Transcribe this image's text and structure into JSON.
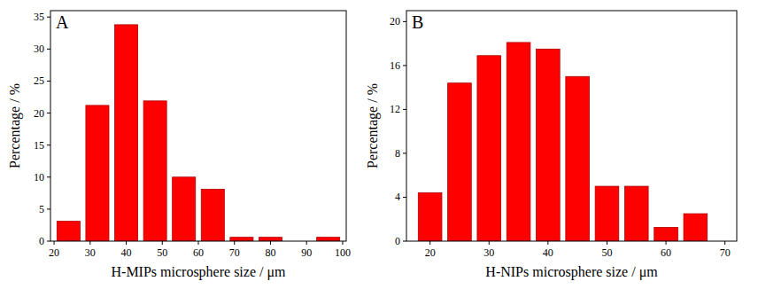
{
  "chart_data": [
    {
      "type": "histogram",
      "annotations": [
        "A"
      ],
      "x_label": "H-MIPs microsphere size / μm",
      "y_label": "Percentage / %",
      "bins": [
        20,
        28,
        36,
        44,
        52,
        60,
        68,
        76,
        84,
        92,
        100
      ],
      "values": [
        3.1,
        21.2,
        33.8,
        21.9,
        10.0,
        8.1,
        0.6,
        0.6,
        0,
        0.6
      ],
      "color": "#ff0000",
      "xlim": [
        19,
        101
      ],
      "xticks": [
        20,
        30,
        40,
        50,
        60,
        70,
        80,
        90,
        100
      ],
      "ylim": [
        0,
        36
      ],
      "yticks": [
        0,
        5,
        10,
        15,
        20,
        25,
        30,
        35
      ],
      "grid": false
    },
    {
      "type": "histogram",
      "annotations": [
        "B"
      ],
      "x_label": "H-NIPs microsphere size / μm",
      "y_label": "Percentage / %",
      "bins": [
        17.5,
        22.5,
        27.5,
        32.5,
        37.5,
        42.5,
        47.5,
        52.5,
        57.5,
        62.5,
        67.5
      ],
      "values": [
        4.4,
        14.4,
        16.9,
        18.1,
        17.5,
        15.0,
        5.0,
        5.0,
        1.25,
        2.5
      ],
      "color": "#ff0000",
      "xlim": [
        16,
        72
      ],
      "xticks": [
        20,
        30,
        40,
        50,
        60,
        70
      ],
      "ylim": [
        0,
        21
      ],
      "yticks": [
        0,
        4,
        8,
        12,
        16,
        20
      ],
      "grid": false
    }
  ]
}
